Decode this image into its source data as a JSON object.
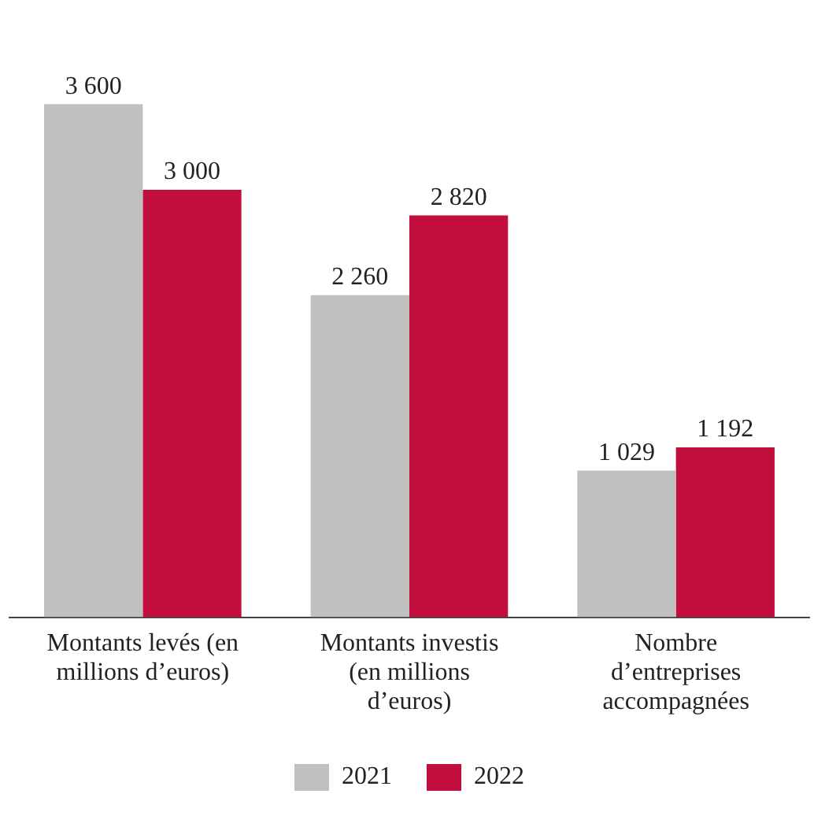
{
  "chart_data": {
    "type": "bar",
    "categories": [
      "Montants levés (en millions d’euros)",
      "Montants investis (en millions d’euros)",
      "Nombre d’entreprises accompagnées"
    ],
    "series": [
      {
        "name": "2021",
        "color": "#c0c0c0",
        "values": [
          3600,
          2260,
          1029
        ],
        "value_labels": [
          "3 600",
          "2 260",
          "1 029"
        ]
      },
      {
        "name": "2022",
        "color": "#c20e3d",
        "values": [
          3000,
          2820,
          1192
        ],
        "value_labels": [
          "3 000",
          "2 820",
          "1 192"
        ]
      }
    ],
    "legend": "bottom",
    "grid": false
  }
}
